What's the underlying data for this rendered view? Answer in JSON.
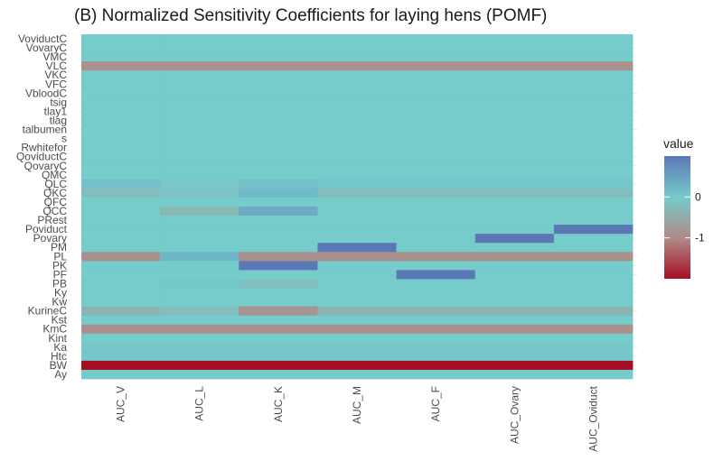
{
  "chart_data": {
    "type": "heatmap",
    "title": "(B) Normalized Sensitivity Coefficients for laying hens (POMF)",
    "xlabel": "",
    "ylabel": "",
    "x_categories": [
      "AUC_V",
      "AUC_L",
      "AUC_K",
      "AUC_M",
      "AUC_F",
      "AUC_Ovary",
      "AUC_Oviduct"
    ],
    "y_categories_top_to_bottom": [
      "VoviductC",
      "VovaryC",
      "VMC",
      "VLC",
      "VKC",
      "VFC",
      "VbloodC",
      "tsig",
      "tlay1",
      "tlag",
      "talbumen",
      "s",
      "Rwhitefor",
      "QoviductC",
      "QovaryC",
      "QMC",
      "QLC",
      "QKC",
      "QFC",
      "QCC",
      "PRest",
      "Poviduct",
      "Povary",
      "PM",
      "PL",
      "PK",
      "PF",
      "PB",
      "Ky",
      "Kw",
      "KurineC",
      "Kst",
      "KmC",
      "Kint",
      "Ka",
      "Htc",
      "BW",
      "Ay"
    ],
    "values": [
      [
        0,
        0,
        0,
        0,
        0,
        0,
        0
      ],
      [
        0,
        0,
        0,
        0,
        0,
        0,
        0
      ],
      [
        0,
        0,
        0,
        0,
        0,
        0,
        0
      ],
      [
        -0.9,
        -0.9,
        -0.9,
        -0.9,
        -0.9,
        -0.9,
        -0.9
      ],
      [
        0,
        0,
        0,
        0,
        0,
        0,
        0
      ],
      [
        0,
        0,
        0,
        0,
        0,
        0,
        0
      ],
      [
        0,
        0,
        0,
        0,
        0,
        0,
        0
      ],
      [
        0,
        0,
        0,
        0,
        0,
        0,
        0
      ],
      [
        0,
        0,
        0,
        0,
        0,
        0,
        0
      ],
      [
        0,
        0,
        0,
        0,
        0,
        0,
        0
      ],
      [
        0,
        0,
        0,
        0,
        0,
        0,
        0
      ],
      [
        0,
        0,
        0,
        0,
        0,
        0,
        0
      ],
      [
        0,
        0,
        0,
        0,
        0,
        0,
        0
      ],
      [
        0,
        0,
        0,
        0,
        0,
        0,
        0
      ],
      [
        0,
        0,
        0,
        0,
        0,
        0,
        0
      ],
      [
        0,
        0,
        0,
        0,
        0,
        0,
        0
      ],
      [
        0.12,
        -0.05,
        0.12,
        0.06,
        0.06,
        0.06,
        0.06
      ],
      [
        -0.2,
        -0.1,
        0.22,
        -0.2,
        -0.2,
        -0.2,
        -0.2
      ],
      [
        0,
        0,
        0,
        0,
        0,
        0,
        0
      ],
      [
        0,
        -0.3,
        0.38,
        0,
        0,
        0,
        0
      ],
      [
        0,
        0,
        0,
        0,
        0,
        0,
        0
      ],
      [
        0,
        0,
        0,
        0,
        0,
        0,
        1
      ],
      [
        0,
        0,
        0,
        0,
        0,
        1,
        0
      ],
      [
        0,
        0,
        0,
        1,
        0,
        0,
        0
      ],
      [
        -0.9,
        0.25,
        -0.9,
        -0.9,
        -0.9,
        -0.9,
        -0.9
      ],
      [
        0,
        0,
        1,
        0,
        0,
        0,
        0
      ],
      [
        0,
        0,
        0,
        0,
        1,
        0,
        0
      ],
      [
        0,
        0.04,
        -0.18,
        0,
        0,
        0,
        0
      ],
      [
        0,
        0,
        0,
        0,
        0,
        0,
        0
      ],
      [
        0,
        0,
        0,
        0,
        0,
        0,
        0
      ],
      [
        -0.35,
        -0.22,
        -0.85,
        -0.35,
        -0.35,
        -0.35,
        -0.35
      ],
      [
        0,
        0,
        0,
        0,
        0,
        0,
        0
      ],
      [
        -0.9,
        -0.9,
        -0.9,
        -0.9,
        -0.9,
        -0.9,
        -0.9
      ],
      [
        0,
        0,
        0,
        0,
        0,
        0,
        0
      ],
      [
        0.05,
        0.05,
        0.05,
        0.05,
        0.05,
        0.05,
        0.05
      ],
      [
        0.05,
        0.05,
        0.05,
        0.05,
        0.05,
        0.05,
        0.05
      ],
      [
        -2,
        -2,
        -2,
        -2,
        -2,
        -2,
        -2
      ],
      [
        0,
        0,
        0,
        0,
        0,
        0,
        0
      ]
    ],
    "legend": {
      "title": "value",
      "placement": "right",
      "ticks": [
        0,
        -1
      ],
      "range": [
        -2,
        1
      ],
      "colors": {
        "low": "#a50f25",
        "mid_low": "#b08a86",
        "mid": "#76cbcb",
        "high": "#5b77b6"
      }
    }
  }
}
